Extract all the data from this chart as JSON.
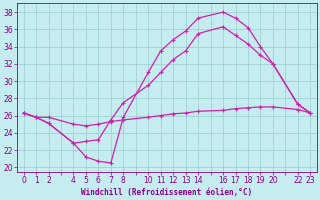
{
  "xlabel": "Windchill (Refroidissement éolien,°C)",
  "background_color": "#c5ecee",
  "grid_color": "#99cccc",
  "line_color": "#cc22aa",
  "xlim": [
    -0.5,
    23.5
  ],
  "ylim": [
    19.5,
    39.0
  ],
  "yticks": [
    20,
    22,
    24,
    26,
    28,
    30,
    32,
    34,
    36,
    38
  ],
  "xtick_labels": [
    "0",
    "1",
    "2",
    "",
    "4",
    "5",
    "6",
    "7",
    "8",
    "",
    "10",
    "11",
    "12",
    "13",
    "14",
    "",
    "16",
    "17",
    "18",
    "19",
    "20",
    "",
    "22",
    "23"
  ],
  "xtick_positions": [
    0,
    1,
    2,
    3,
    4,
    5,
    6,
    7,
    8,
    9,
    10,
    11,
    12,
    13,
    14,
    15,
    16,
    17,
    18,
    19,
    20,
    21,
    22,
    23
  ],
  "series1_x": [
    0,
    1,
    2,
    4,
    5,
    6,
    7,
    8,
    10,
    11,
    12,
    13,
    14,
    16,
    17,
    18,
    19,
    20,
    22,
    23
  ],
  "series1_y": [
    26.3,
    25.8,
    25.8,
    25.0,
    24.8,
    25.0,
    25.3,
    25.5,
    25.8,
    26.0,
    26.2,
    26.3,
    26.5,
    26.6,
    26.8,
    26.9,
    27.0,
    27.0,
    26.7,
    26.3
  ],
  "series2_x": [
    0,
    1,
    2,
    4,
    5,
    6,
    7,
    8,
    10,
    11,
    12,
    13,
    14,
    16,
    17,
    18,
    19,
    20,
    22,
    23
  ],
  "series2_y": [
    26.3,
    25.8,
    25.1,
    22.8,
    21.2,
    20.7,
    20.5,
    25.8,
    31.0,
    33.5,
    34.8,
    35.8,
    37.3,
    38.0,
    37.3,
    36.2,
    34.0,
    32.0,
    27.3,
    26.3
  ],
  "series3_x": [
    0,
    1,
    2,
    4,
    5,
    6,
    7,
    8,
    10,
    11,
    12,
    13,
    14,
    16,
    17,
    18,
    19,
    20,
    22,
    23
  ],
  "series3_y": [
    26.3,
    25.8,
    25.1,
    22.8,
    23.0,
    23.2,
    25.5,
    27.5,
    29.5,
    31.0,
    32.5,
    33.5,
    35.5,
    36.3,
    35.3,
    34.3,
    33.0,
    32.0,
    27.3,
    26.3
  ],
  "marker_size": 2.5,
  "line_width": 0.9,
  "xlabel_fontsize": 5.5,
  "tick_fontsize": 5.5
}
